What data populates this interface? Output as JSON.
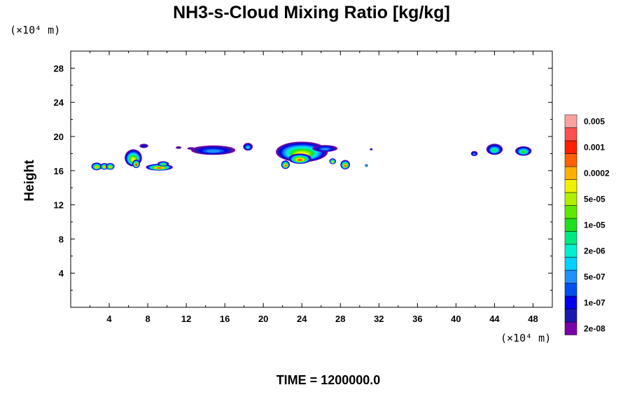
{
  "chart_data": {
    "type": "contour",
    "title": "NH3-s-Cloud Mixing Ratio [kg/kg]",
    "ylabel": "Height",
    "y_unit": "(×10⁴ m)",
    "x_unit": "(×10⁴ m)",
    "footer": "TIME = 1200000.0",
    "xlim": [
      0,
      50
    ],
    "ylim": [
      0,
      30
    ],
    "x_ticks": [
      4,
      8,
      12,
      16,
      20,
      24,
      28,
      32,
      36,
      40,
      44,
      48
    ],
    "x_tick_labels": [
      "4",
      "8",
      "12",
      "16",
      "20",
      "24",
      "28",
      "32",
      "36",
      "40",
      "44",
      "48"
    ],
    "y_ticks": [
      4,
      8,
      12,
      16,
      20,
      24,
      28
    ],
    "y_tick_labels": [
      "4",
      "8",
      "12",
      "16",
      "20",
      "24",
      "28"
    ],
    "colorbar": {
      "colors": [
        "#7a00a8",
        "#1a1ab0",
        "#0000ee",
        "#0050f0",
        "#1e90ff",
        "#00d0ff",
        "#00f0d0",
        "#00e880",
        "#20e020",
        "#60e800",
        "#b0f000",
        "#f0f000",
        "#ffb000",
        "#ff6000",
        "#ff2000",
        "#ff5050",
        "#ffa0a0"
      ],
      "labels": [
        {
          "index": 0,
          "text": "2e-08"
        },
        {
          "index": 2,
          "text": "1e-07"
        },
        {
          "index": 4,
          "text": "5e-07"
        },
        {
          "index": 6,
          "text": "2e-06"
        },
        {
          "index": 8,
          "text": "1e-05"
        },
        {
          "index": 10,
          "text": "5e-05"
        },
        {
          "index": 12,
          "text": "0.0002"
        },
        {
          "index": 14,
          "text": "0.001"
        },
        {
          "index": 16,
          "text": "0.005"
        }
      ]
    },
    "cloud_cells": [
      {
        "x": 2.7,
        "y": 16.5,
        "rx": 0.55,
        "ry": 0.45,
        "peak": 12
      },
      {
        "x": 3.5,
        "y": 16.5,
        "rx": 0.45,
        "ry": 0.4,
        "peak": 12
      },
      {
        "x": 4.1,
        "y": 16.5,
        "rx": 0.45,
        "ry": 0.4,
        "peak": 12
      },
      {
        "x": 6.5,
        "y": 17.5,
        "rx": 0.9,
        "ry": 1.0,
        "peak": 11
      },
      {
        "x": 6.8,
        "y": 16.8,
        "rx": 0.4,
        "ry": 0.5,
        "peak": 14
      },
      {
        "x": 7.6,
        "y": 18.9,
        "rx": 0.45,
        "ry": 0.25,
        "peak": 2
      },
      {
        "x": 9.2,
        "y": 16.4,
        "rx": 1.4,
        "ry": 0.4,
        "peak": 13
      },
      {
        "x": 9.6,
        "y": 16.8,
        "rx": 0.6,
        "ry": 0.3,
        "peak": 9
      },
      {
        "x": 14.8,
        "y": 18.4,
        "rx": 2.3,
        "ry": 0.55,
        "peak": 4
      },
      {
        "x": 18.4,
        "y": 18.8,
        "rx": 0.5,
        "ry": 0.45,
        "peak": 5
      },
      {
        "x": 11.2,
        "y": 18.7,
        "rx": 0.3,
        "ry": 0.15,
        "peak": 1
      },
      {
        "x": 12.5,
        "y": 18.6,
        "rx": 0.4,
        "ry": 0.15,
        "peak": 1
      },
      {
        "x": 24.0,
        "y": 18.2,
        "rx": 2.7,
        "ry": 1.2,
        "peak": 11
      },
      {
        "x": 23.8,
        "y": 17.4,
        "rx": 1.2,
        "ry": 0.6,
        "peak": 13
      },
      {
        "x": 26.4,
        "y": 18.6,
        "rx": 1.3,
        "ry": 0.4,
        "peak": 4
      },
      {
        "x": 22.3,
        "y": 16.7,
        "rx": 0.45,
        "ry": 0.5,
        "peak": 13
      },
      {
        "x": 27.2,
        "y": 17.1,
        "rx": 0.35,
        "ry": 0.35,
        "peak": 11
      },
      {
        "x": 28.5,
        "y": 16.7,
        "rx": 0.5,
        "ry": 0.55,
        "peak": 13
      },
      {
        "x": 30.7,
        "y": 16.6,
        "rx": 0.15,
        "ry": 0.15,
        "peak": 8
      },
      {
        "x": 31.2,
        "y": 18.5,
        "rx": 0.15,
        "ry": 0.12,
        "peak": 2
      },
      {
        "x": 41.9,
        "y": 18.0,
        "rx": 0.35,
        "ry": 0.3,
        "peak": 4
      },
      {
        "x": 44.0,
        "y": 18.5,
        "rx": 0.85,
        "ry": 0.65,
        "peak": 7
      },
      {
        "x": 47.0,
        "y": 18.3,
        "rx": 0.85,
        "ry": 0.55,
        "peak": 8
      }
    ]
  }
}
